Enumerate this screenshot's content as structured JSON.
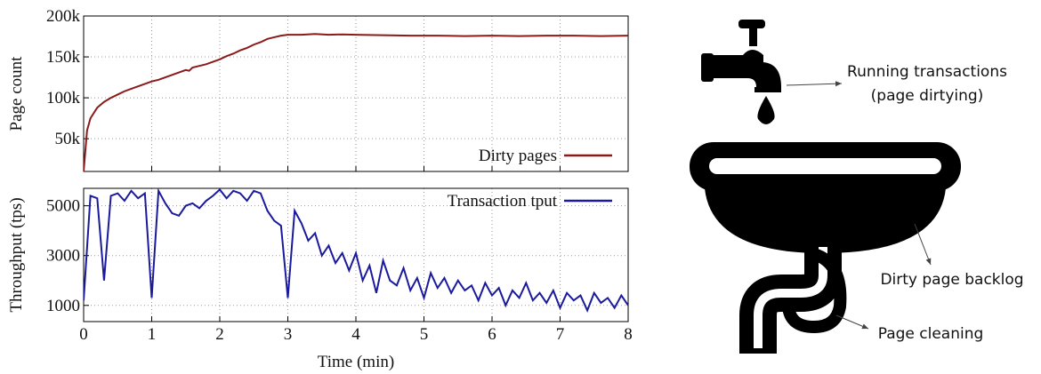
{
  "chart_data": [
    {
      "type": "line",
      "ylabel": "Page count",
      "x": [
        0,
        0.05,
        0.1,
        0.2,
        0.3,
        0.4,
        0.5,
        0.6,
        0.7,
        0.8,
        0.9,
        1.0,
        1.1,
        1.2,
        1.3,
        1.4,
        1.5,
        1.55,
        1.6,
        1.7,
        1.8,
        1.9,
        2.0,
        2.1,
        2.2,
        2.3,
        2.4,
        2.5,
        2.6,
        2.7,
        2.8,
        2.9,
        3.0,
        3.2,
        3.4,
        3.6,
        3.8,
        4.0,
        4.4,
        4.8,
        5.2,
        5.6,
        6.0,
        6.4,
        6.8,
        7.2,
        7.6,
        8.0
      ],
      "series": [
        {
          "name": "Dirty pages",
          "color": "#8b1a1a",
          "values": [
            10000,
            60000,
            75000,
            88000,
            95000,
            100000,
            104000,
            108000,
            111000,
            114000,
            117000,
            120000,
            122000,
            125000,
            128000,
            131000,
            134000,
            133000,
            137000,
            139000,
            141000,
            144000,
            147000,
            151000,
            154000,
            158000,
            161000,
            165000,
            168000,
            172000,
            174000,
            176000,
            177000,
            177000,
            178000,
            177000,
            177500,
            177000,
            176500,
            176000,
            176000,
            175500,
            176000,
            175500,
            176000,
            176000,
            175500,
            176000
          ]
        }
      ],
      "xlim": [
        0,
        8
      ],
      "xticks": [
        0,
        1,
        2,
        3,
        4,
        5,
        6,
        7,
        8
      ],
      "ylim": [
        10000,
        200000
      ],
      "yticks": [
        {
          "value": 50000,
          "label": "50k"
        },
        {
          "value": 100000,
          "label": "100k"
        },
        {
          "value": 150000,
          "label": "150k"
        },
        {
          "value": 200000,
          "label": "200k"
        }
      ],
      "grid": true,
      "legend": "lower right"
    },
    {
      "type": "line",
      "ylabel": "Throughput (tps)",
      "xlabel": "Time (min)",
      "x": [
        0,
        0.1,
        0.2,
        0.3,
        0.4,
        0.5,
        0.6,
        0.7,
        0.8,
        0.9,
        1.0,
        1.1,
        1.2,
        1.3,
        1.4,
        1.5,
        1.6,
        1.7,
        1.8,
        1.9,
        2.0,
        2.1,
        2.2,
        2.3,
        2.4,
        2.5,
        2.6,
        2.7,
        2.8,
        2.9,
        3.0,
        3.1,
        3.2,
        3.3,
        3.4,
        3.5,
        3.6,
        3.7,
        3.8,
        3.9,
        4.0,
        4.1,
        4.2,
        4.3,
        4.4,
        4.5,
        4.6,
        4.7,
        4.8,
        4.9,
        5.0,
        5.1,
        5.2,
        5.3,
        5.4,
        5.5,
        5.6,
        5.7,
        5.8,
        5.9,
        6.0,
        6.1,
        6.2,
        6.3,
        6.4,
        6.5,
        6.6,
        6.7,
        6.8,
        6.9,
        7.0,
        7.1,
        7.2,
        7.3,
        7.4,
        7.5,
        7.6,
        7.7,
        7.8,
        7.9,
        8.0
      ],
      "series": [
        {
          "name": "Transaction tput",
          "color": "#1a1a9c",
          "values": [
            1200,
            5400,
            5300,
            2000,
            5400,
            5500,
            5200,
            5600,
            5300,
            5500,
            1300,
            5600,
            5100,
            4700,
            4600,
            5000,
            5100,
            4900,
            5200,
            5400,
            5650,
            5300,
            5600,
            5500,
            5200,
            5600,
            5500,
            4800,
            4400,
            4200,
            1300,
            4800,
            4300,
            3600,
            3900,
            3000,
            3400,
            2700,
            3100,
            2400,
            3100,
            2000,
            2600,
            1500,
            2800,
            2000,
            1800,
            2500,
            1600,
            2100,
            1300,
            2300,
            1700,
            2100,
            1500,
            2000,
            1600,
            1800,
            1200,
            1900,
            1400,
            1700,
            1000,
            1600,
            1300,
            1900,
            1200,
            1500,
            1100,
            1600,
            900,
            1500,
            1200,
            1400,
            800,
            1500,
            1100,
            1300,
            900,
            1400,
            1000
          ]
        }
      ],
      "xlim": [
        0,
        8
      ],
      "xticks": [
        0,
        1,
        2,
        3,
        4,
        5,
        6,
        7,
        8
      ],
      "ylim": [
        350,
        5700
      ],
      "yticks": [
        1000,
        3000,
        5000
      ],
      "grid": true,
      "legend": "upper right"
    }
  ],
  "diagram": {
    "labels": [
      "Running transactions",
      "(page dirtying)",
      "Dirty page backlog",
      "Page cleaning"
    ]
  }
}
